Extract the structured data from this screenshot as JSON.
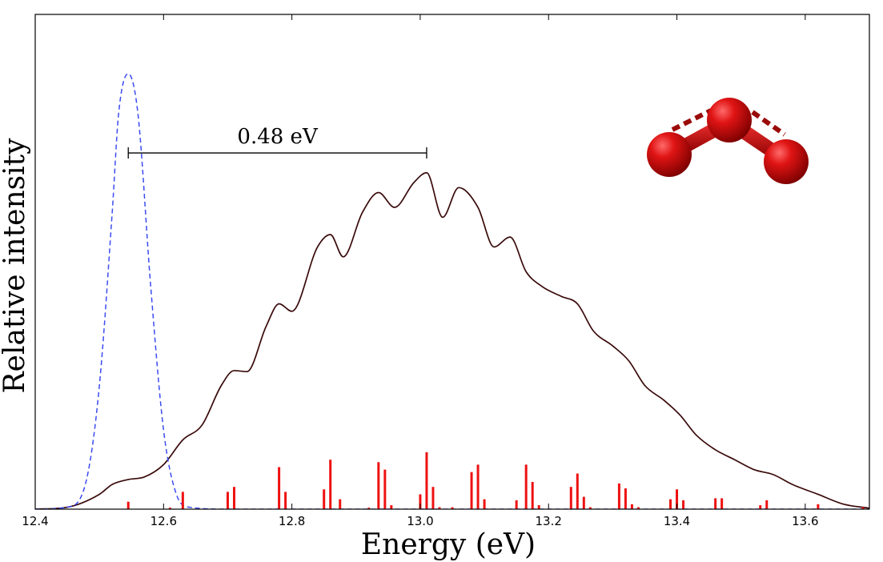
{
  "chart_data": {
    "type": "line",
    "xlabel": "Energy (eV)",
    "ylabel": "Relative intensity",
    "xlim": [
      12.4,
      13.7
    ],
    "ylim": [
      0,
      1.0
    ],
    "x_ticks": [
      "12.4",
      "12.6",
      "12.8",
      "13.0",
      "13.2",
      "13.4",
      "13.6"
    ],
    "grid": false,
    "series": [
      {
        "style": "solid",
        "color": "#3a0a0a",
        "x": [
          12.4,
          12.45,
          12.5,
          12.52,
          12.545,
          12.57,
          12.6,
          12.63,
          12.66,
          12.69,
          12.71,
          12.73,
          12.76,
          12.78,
          12.8,
          12.84,
          12.86,
          12.88,
          12.91,
          12.935,
          12.96,
          12.99,
          13.01,
          13.035,
          13.06,
          13.09,
          13.115,
          13.14,
          13.165,
          13.19,
          13.22,
          13.245,
          13.27,
          13.3,
          13.325,
          13.35,
          13.38,
          13.405,
          13.43,
          13.46,
          13.49,
          13.52,
          13.55,
          13.58,
          13.62,
          13.66,
          13.7
        ],
        "y": [
          0.0,
          0.004,
          0.03,
          0.05,
          0.06,
          0.065,
          0.09,
          0.14,
          0.17,
          0.25,
          0.28,
          0.278,
          0.37,
          0.415,
          0.4,
          0.53,
          0.555,
          0.51,
          0.6,
          0.64,
          0.61,
          0.66,
          0.68,
          0.59,
          0.65,
          0.61,
          0.53,
          0.55,
          0.48,
          0.45,
          0.43,
          0.415,
          0.36,
          0.33,
          0.3,
          0.25,
          0.22,
          0.19,
          0.15,
          0.12,
          0.1,
          0.08,
          0.07,
          0.05,
          0.03,
          0.01,
          0.002
        ]
      },
      {
        "style": "dashed",
        "color": "#3b4bf0",
        "x": [
          12.4,
          12.45,
          12.48,
          12.5,
          12.52,
          12.53,
          12.545,
          12.56,
          12.58,
          12.6,
          12.62,
          12.64,
          12.7,
          13.7
        ],
        "y": [
          0.0,
          0.004,
          0.06,
          0.25,
          0.6,
          0.8,
          0.88,
          0.8,
          0.45,
          0.16,
          0.03,
          0.004,
          0.0,
          0.0
        ]
      },
      {
        "style": "stick",
        "color": "#ee1111",
        "x": [
          12.545,
          12.61,
          12.63,
          12.7,
          12.71,
          12.78,
          12.79,
          12.85,
          12.86,
          12.875,
          12.92,
          12.935,
          12.945,
          12.955,
          13.0,
          13.01,
          13.02,
          13.03,
          13.05,
          13.08,
          13.09,
          13.1,
          13.15,
          13.165,
          13.175,
          13.185,
          13.235,
          13.245,
          13.255,
          13.265,
          13.31,
          13.32,
          13.33,
          13.34,
          13.39,
          13.4,
          13.41,
          13.46,
          13.47,
          13.53,
          13.54,
          13.62,
          13.69
        ],
        "y": [
          0.015,
          0.003,
          0.035,
          0.035,
          0.045,
          0.085,
          0.035,
          0.04,
          0.1,
          0.02,
          0.003,
          0.095,
          0.08,
          0.008,
          0.03,
          0.115,
          0.045,
          0.004,
          0.004,
          0.075,
          0.09,
          0.02,
          0.018,
          0.09,
          0.055,
          0.008,
          0.045,
          0.072,
          0.025,
          0.004,
          0.052,
          0.042,
          0.01,
          0.004,
          0.02,
          0.04,
          0.018,
          0.022,
          0.022,
          0.008,
          0.018,
          0.01,
          0.004
        ]
      }
    ],
    "annotations": [
      {
        "text": "0.48 eV",
        "x_start": 12.545,
        "x_end": 13.01,
        "y": 0.72
      }
    ]
  },
  "molecule_colors": {
    "atom": "#cc1111",
    "bond": "#bb1111",
    "dashes": "#9a0a0a"
  }
}
